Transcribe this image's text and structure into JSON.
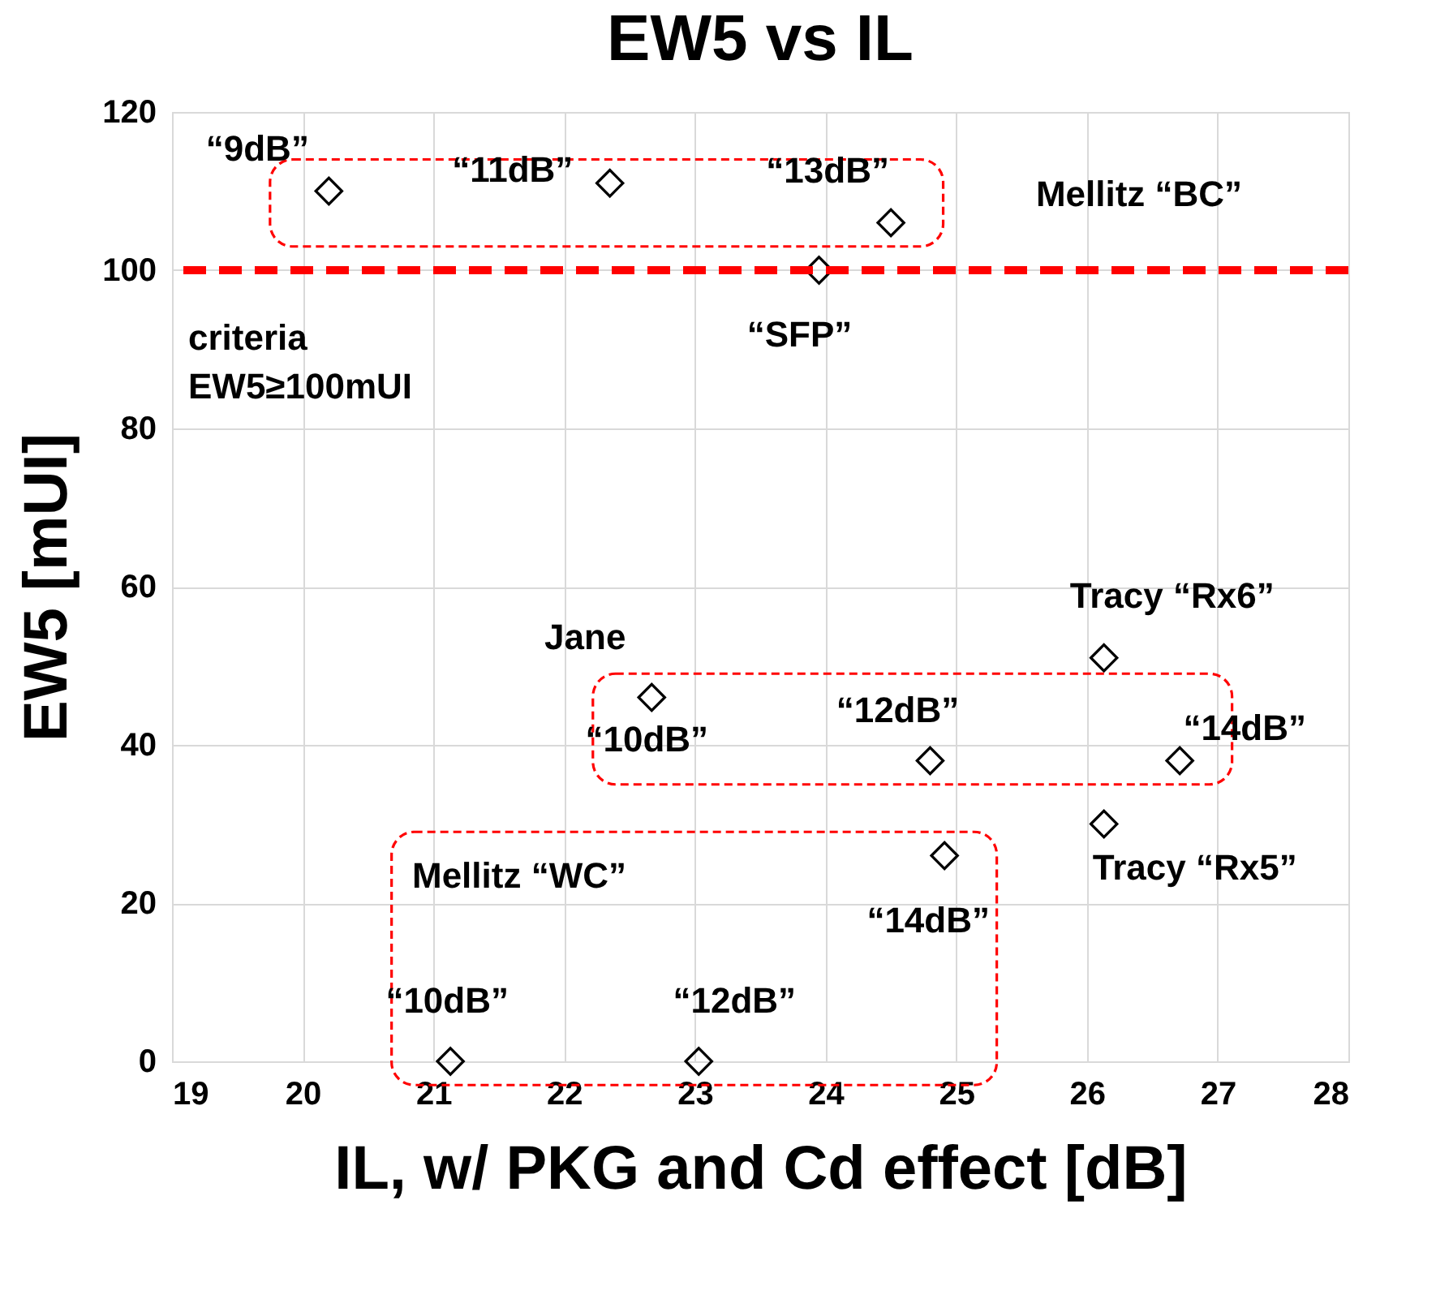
{
  "chart_data": {
    "type": "scatter",
    "title": "EW5 vs IL",
    "xlabel": "IL, w/ PKG and Cd effect [dB]",
    "ylabel": "EW5 [mUI]",
    "xlim": [
      19,
      28
    ],
    "xticks": [
      19,
      20,
      21,
      22,
      23,
      24,
      25,
      26,
      27,
      28
    ],
    "ylim": [
      0,
      120
    ],
    "yticks": [
      0,
      20,
      40,
      60,
      80,
      100,
      120
    ],
    "grid": true,
    "marker": "diamond",
    "series": [
      {
        "color": "#000000",
        "x": [
          20.2,
          22.35,
          24.5
        ],
        "values": [
          110,
          111,
          106
        ]
      },
      {
        "color": "#000000",
        "x": [
          23.95
        ],
        "values": [
          100
        ]
      },
      {
        "color": "#000000",
        "x": [
          22.67,
          24.8,
          26.71
        ],
        "values": [
          46,
          38,
          38
        ]
      },
      {
        "color": "#000000",
        "x": [
          26.13
        ],
        "values": [
          51
        ]
      },
      {
        "color": "#000000",
        "x": [
          26.13
        ],
        "values": [
          30
        ]
      },
      {
        "color": "#000000",
        "x": [
          21.13,
          23.03,
          24.91
        ],
        "values": [
          0,
          0,
          26
        ]
      }
    ],
    "ref_lines": [
      {
        "axis": "y",
        "value": 100,
        "label": "criteria EW5≥100mUI",
        "color": "#ff0000",
        "line_style": "dashed"
      }
    ],
    "annotations": [
      {
        "text": "“9dB”",
        "x": 20.2,
        "y": 110
      },
      {
        "text": "“11dB”",
        "x": 22.35,
        "y": 111
      },
      {
        "text": "“13dB”",
        "x": 24.5,
        "y": 106
      },
      "Mellitz “BC”",
      {
        "text": "“SFP”",
        "x": 23.95,
        "y": 100
      },
      {
        "text": "Jane",
        "x": 22.67,
        "y": 46
      },
      {
        "text": "Tracy “Rx6”",
        "x": 26.13,
        "y": 51
      },
      {
        "text": "“10dB”",
        "x": 22.67,
        "y": 46
      },
      {
        "text": "“12dB”",
        "x": 24.8,
        "y": 38
      },
      {
        "text": "“14dB”",
        "x": 26.71,
        "y": 38
      },
      {
        "text": "Tracy “Rx5”",
        "x": 26.13,
        "y": 30
      },
      "Mellitz “WC”",
      {
        "text": "“14dB”",
        "x": 24.91,
        "y": 26
      },
      {
        "text": "“10dB”",
        "x": 21.13,
        "y": 0
      },
      {
        "text": "“12dB”",
        "x": 23.03,
        "y": 0
      }
    ]
  }
}
